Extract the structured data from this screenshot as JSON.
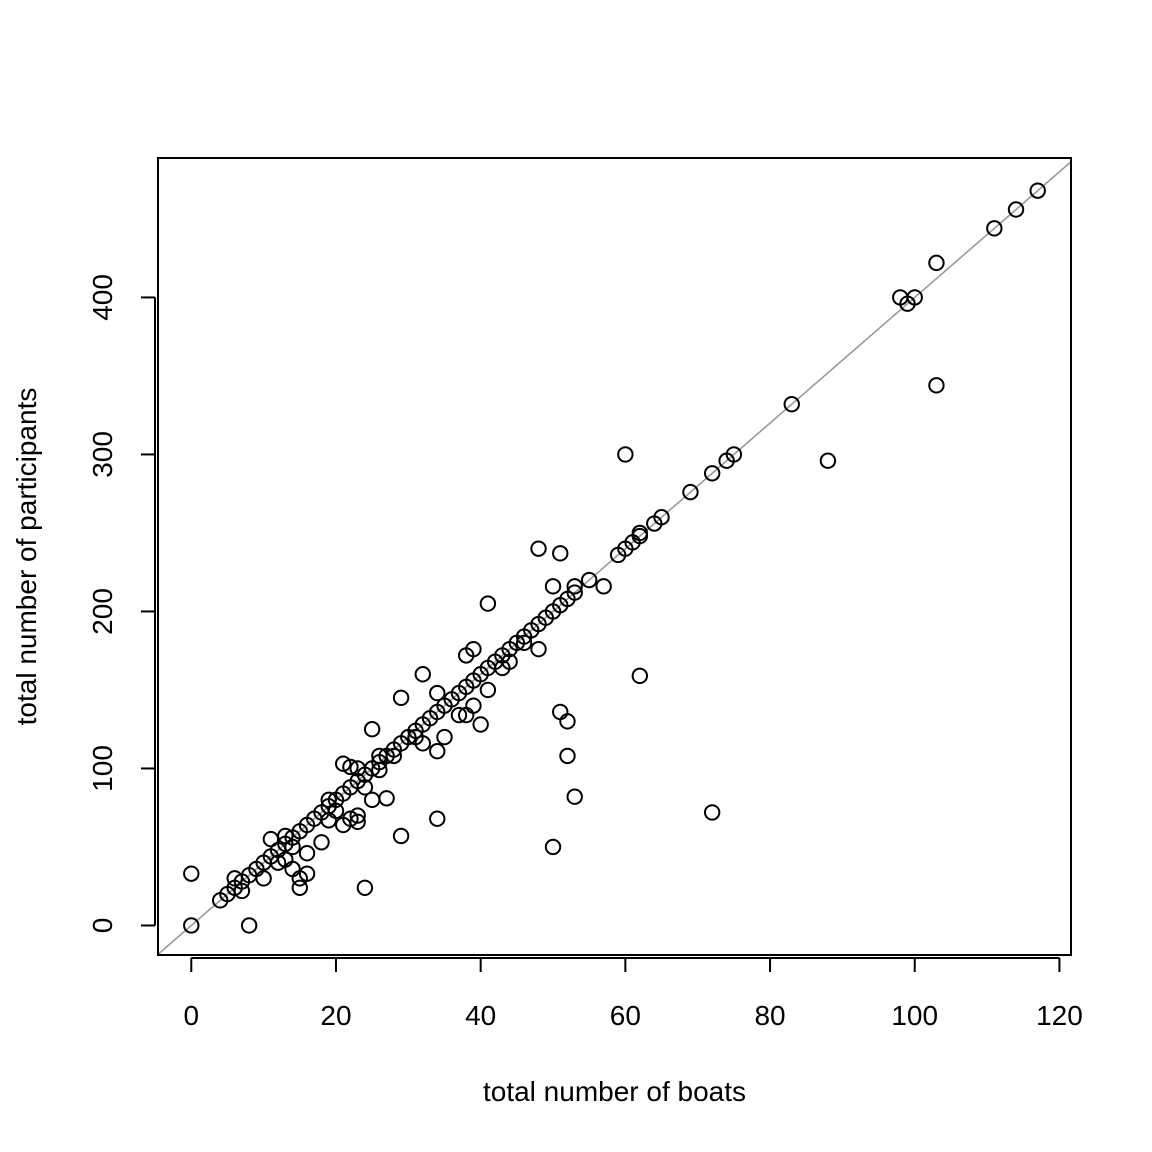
{
  "chart_data": {
    "type": "scatter",
    "title": "",
    "xlabel": "total number of boats",
    "ylabel": "total number of participants",
    "xlim": [
      -4.6,
      121.6
    ],
    "ylim": [
      -18.8,
      488.8
    ],
    "xticks": [
      0,
      20,
      40,
      60,
      80,
      100,
      120
    ],
    "yticks": [
      0,
      100,
      200,
      300,
      400
    ],
    "grid": false,
    "legend": "none",
    "reference_line": {
      "slope": 4,
      "intercept": 0,
      "color": "#9a9a9a"
    },
    "marker_color": "#000000",
    "points": [
      [
        0,
        0
      ],
      [
        0,
        33
      ],
      [
        4,
        16
      ],
      [
        5,
        20
      ],
      [
        6,
        24
      ],
      [
        6,
        30
      ],
      [
        7,
        22
      ],
      [
        7,
        28
      ],
      [
        8,
        0
      ],
      [
        8,
        32
      ],
      [
        9,
        36
      ],
      [
        10,
        30
      ],
      [
        10,
        40
      ],
      [
        11,
        44
      ],
      [
        11,
        55
      ],
      [
        12,
        48
      ],
      [
        12,
        40
      ],
      [
        13,
        52
      ],
      [
        13,
        57
      ],
      [
        13,
        42
      ],
      [
        14,
        56
      ],
      [
        14,
        50
      ],
      [
        14,
        36
      ],
      [
        15,
        24
      ],
      [
        15,
        30
      ],
      [
        15,
        60
      ],
      [
        16,
        64
      ],
      [
        16,
        46
      ],
      [
        16,
        33
      ],
      [
        17,
        68
      ],
      [
        18,
        53
      ],
      [
        18,
        72
      ],
      [
        19,
        76
      ],
      [
        19,
        80
      ],
      [
        19,
        67
      ],
      [
        20,
        80
      ],
      [
        20,
        73
      ],
      [
        21,
        84
      ],
      [
        21,
        103
      ],
      [
        21,
        64
      ],
      [
        22,
        88
      ],
      [
        22,
        101
      ],
      [
        22,
        68
      ],
      [
        23,
        92
      ],
      [
        23,
        100
      ],
      [
        23,
        70
      ],
      [
        23,
        66
      ],
      [
        24,
        96
      ],
      [
        24,
        24
      ],
      [
        24,
        88
      ],
      [
        25,
        100
      ],
      [
        25,
        125
      ],
      [
        25,
        80
      ],
      [
        26,
        104
      ],
      [
        26,
        108
      ],
      [
        26,
        99
      ],
      [
        27,
        108
      ],
      [
        27,
        81
      ],
      [
        28,
        112
      ],
      [
        28,
        108
      ],
      [
        29,
        116
      ],
      [
        29,
        145
      ],
      [
        29,
        57
      ],
      [
        30,
        120
      ],
      [
        31,
        124
      ],
      [
        31,
        120
      ],
      [
        32,
        128
      ],
      [
        32,
        160
      ],
      [
        32,
        116
      ],
      [
        33,
        132
      ],
      [
        34,
        136
      ],
      [
        34,
        148
      ],
      [
        34,
        111
      ],
      [
        34,
        68
      ],
      [
        35,
        140
      ],
      [
        35,
        120
      ],
      [
        36,
        144
      ],
      [
        37,
        148
      ],
      [
        37,
        134
      ],
      [
        38,
        152
      ],
      [
        38,
        172
      ],
      [
        38,
        134
      ],
      [
        39,
        156
      ],
      [
        39,
        176
      ],
      [
        39,
        140
      ],
      [
        40,
        160
      ],
      [
        40,
        128
      ],
      [
        41,
        164
      ],
      [
        41,
        205
      ],
      [
        41,
        150
      ],
      [
        42,
        168
      ],
      [
        43,
        172
      ],
      [
        43,
        164
      ],
      [
        44,
        176
      ],
      [
        44,
        168
      ],
      [
        45,
        180
      ],
      [
        46,
        184
      ],
      [
        46,
        180
      ],
      [
        47,
        188
      ],
      [
        48,
        192
      ],
      [
        48,
        240
      ],
      [
        48,
        176
      ],
      [
        49,
        196
      ],
      [
        50,
        200
      ],
      [
        50,
        216
      ],
      [
        50,
        50
      ],
      [
        51,
        204
      ],
      [
        51,
        237
      ],
      [
        51,
        136
      ],
      [
        52,
        208
      ],
      [
        52,
        130
      ],
      [
        52,
        108
      ],
      [
        53,
        212
      ],
      [
        53,
        216
      ],
      [
        53,
        82
      ],
      [
        55,
        220
      ],
      [
        57,
        216
      ],
      [
        59,
        236
      ],
      [
        60,
        240
      ],
      [
        60,
        300
      ],
      [
        61,
        244
      ],
      [
        62,
        248
      ],
      [
        62,
        250
      ],
      [
        62,
        159
      ],
      [
        64,
        256
      ],
      [
        65,
        260
      ],
      [
        69,
        276
      ],
      [
        72,
        288
      ],
      [
        72,
        72
      ],
      [
        74,
        296
      ],
      [
        75,
        300
      ],
      [
        83,
        332
      ],
      [
        88,
        296
      ],
      [
        98,
        400
      ],
      [
        99,
        396
      ],
      [
        100,
        400
      ],
      [
        103,
        422
      ],
      [
        103,
        344
      ],
      [
        111,
        444
      ],
      [
        114,
        456
      ],
      [
        117,
        468
      ]
    ]
  }
}
